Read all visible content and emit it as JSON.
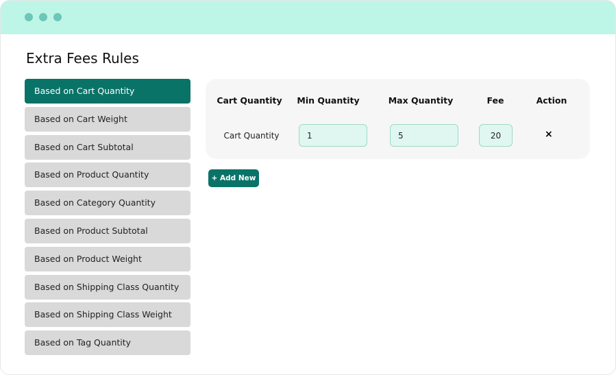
{
  "title": "Extra Fees Rules",
  "colors": {
    "accent": "#0a7368",
    "header": "#bdf5e6"
  },
  "sidebar": {
    "items": [
      {
        "label": "Based on Cart Quantity",
        "active": true
      },
      {
        "label": "Based on Cart Weight"
      },
      {
        "label": "Based on Cart Subtotal"
      },
      {
        "label": "Based on Product Quantity"
      },
      {
        "label": "Based on Category Quantity"
      },
      {
        "label": "Based on Product Subtotal"
      },
      {
        "label": "Based on Product Weight"
      },
      {
        "label": "Based on Shipping Class Quantity"
      },
      {
        "label": "Based on Shipping Class Weight"
      },
      {
        "label": "Based on Tag Quantity"
      }
    ]
  },
  "table": {
    "headers": [
      "Cart Quantity",
      "Min Quantity",
      "Max Quantity",
      "Fee",
      "Action"
    ],
    "row": {
      "label": "Cart Quantity",
      "min": "1",
      "max": "5",
      "fee": "20",
      "action_icon": "close-icon",
      "action": "×"
    }
  },
  "add_button": "+ Add New"
}
